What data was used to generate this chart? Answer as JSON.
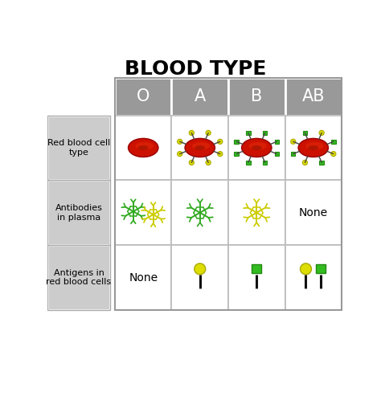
{
  "title": "BLOOD TYPE",
  "title_fontsize": 18,
  "title_fontweight": "bold",
  "background_color": "#ffffff",
  "blood_types": [
    "O",
    "A",
    "B",
    "AB"
  ],
  "row_labels": [
    "Red blood cell\ntype",
    "Antibodies\nin plasma",
    "Antigens in\nred blood cells"
  ],
  "header_bg": "#999999",
  "header_text_color": "#ffffff",
  "row_label_bg": "#cccccc",
  "cell_bg": "#ffffff",
  "rbc_color": "#cc1100",
  "rbc_highlight": "#aa0000",
  "rbc_sheen": "#dd4422",
  "antigen_A_color": "#dddd00",
  "antigen_A_edge": "#aaaa00",
  "antigen_B_color": "#33bb22",
  "antigen_B_edge": "#228811",
  "spike_color": "#555555",
  "antibody_green": "#33aa22",
  "antibody_yellow": "#cccc00",
  "pin_stem_color": "#111111",
  "none_text": "None",
  "none_fontsize": 10
}
